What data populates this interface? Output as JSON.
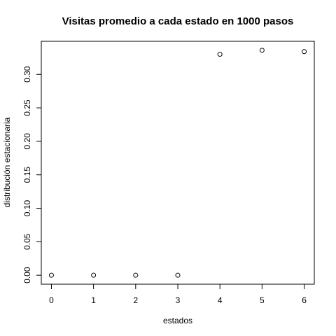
{
  "chart_data": {
    "type": "scatter",
    "title": "Visitas promedio a cada estado en 1000 pasos",
    "xlabel": "estados",
    "ylabel": "distribución estacionaria",
    "x": [
      0,
      1,
      2,
      3,
      4,
      5,
      6
    ],
    "y": [
      0.0,
      0.0,
      0.0,
      0.0,
      0.33,
      0.336,
      0.334
    ],
    "xlim": [
      -0.24,
      6.24
    ],
    "ylim": [
      -0.0134,
      0.3494
    ],
    "xticks": [
      0,
      1,
      2,
      3,
      4,
      5,
      6
    ],
    "yticks": [
      0.0,
      0.05,
      0.1,
      0.15,
      0.2,
      0.25,
      0.3
    ],
    "ytick_labels": [
      "0.00",
      "0.05",
      "0.10",
      "0.15",
      "0.20",
      "0.25",
      "0.30"
    ],
    "marker": "open-circle",
    "grid": false
  }
}
